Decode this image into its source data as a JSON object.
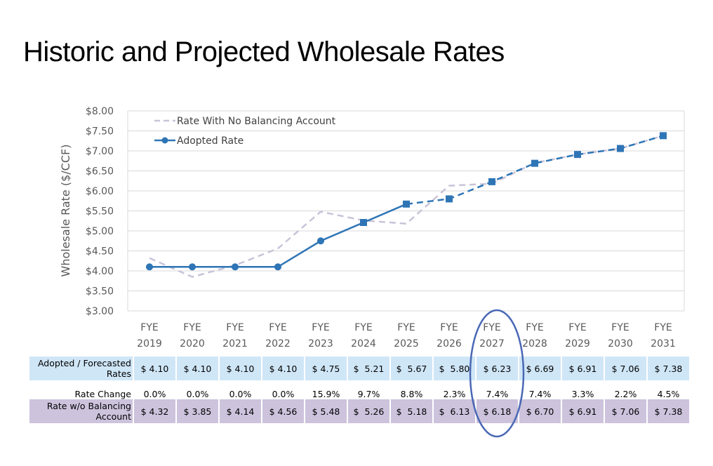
{
  "page_title": "Historic and Projected Wholesale Rates",
  "chart_data": {
    "type": "line",
    "title": "Historic and Projected Wholesale Rates",
    "xlabel": "",
    "ylabel": "Wholesale Rate ($/CCF)",
    "ylim": [
      3.0,
      8.0
    ],
    "yticks": [
      "$8.00",
      "$7.50",
      "$7.00",
      "$6.50",
      "$6.00",
      "$5.50",
      "$5.00",
      "$4.50",
      "$4.00",
      "$3.50",
      "$3.00"
    ],
    "ytick_values": [
      8.0,
      7.5,
      7.0,
      6.5,
      6.0,
      5.5,
      5.0,
      4.5,
      4.0,
      3.5,
      3.0
    ],
    "grid": true,
    "legend_position": "top-left",
    "categories": [
      {
        "line1": "FYE",
        "line2": "2019"
      },
      {
        "line1": "FYE",
        "line2": "2020"
      },
      {
        "line1": "FYE",
        "line2": "2021"
      },
      {
        "line1": "FYE",
        "line2": "2022"
      },
      {
        "line1": "FYE",
        "line2": "2023"
      },
      {
        "line1": "FYE",
        "line2": "2024"
      },
      {
        "line1": "FYE",
        "line2": "2025"
      },
      {
        "line1": "FYE",
        "line2": "2026"
      },
      {
        "line1": "FYE",
        "line2": "2027"
      },
      {
        "line1": "FYE",
        "line2": "2028"
      },
      {
        "line1": "FYE",
        "line2": "2029"
      },
      {
        "line1": "FYE",
        "line2": "2030"
      },
      {
        "line1": "FYE",
        "line2": "2031"
      }
    ],
    "series": [
      {
        "name": "Rate With No Balancing Account",
        "color": "#c9c3d9",
        "style": "dashed",
        "values": [
          4.32,
          3.85,
          4.14,
          4.56,
          5.48,
          5.26,
          5.18,
          6.13,
          6.18,
          6.7,
          6.91,
          7.06,
          7.38
        ]
      },
      {
        "name": "Adopted Rate",
        "color": "#2e75b6",
        "style": "solid through FYE 2025, dashed after",
        "markers": "circle through FYE 2023, square after",
        "values": [
          4.1,
          4.1,
          4.1,
          4.1,
          4.75,
          5.21,
          5.67,
          5.8,
          6.23,
          6.69,
          6.91,
          7.06,
          7.38
        ]
      }
    ],
    "highlight": "FYE 2027"
  },
  "table": {
    "rows": [
      {
        "header_line1": "Adopted / Forecasted",
        "header_line2": "Rates",
        "cells": [
          "$ 4.10",
          "$ 4.10",
          "$ 4.10",
          "$ 4.10",
          "$ 4.75",
          "$  5.21",
          "$  5.67",
          "$  5.80",
          "$ 6.23",
          "$ 6.69",
          "$ 6.91",
          "$ 7.06",
          "$ 7.38"
        ]
      },
      {
        "header_line1": "Rate Change",
        "header_line2": "",
        "cells": [
          "0.0%",
          "0.0%",
          "0.0%",
          "0.0%",
          "15.9%",
          "9.7%",
          "8.8%",
          "2.3%",
          "7.4%",
          "7.4%",
          "3.3%",
          "2.2%",
          "4.5%"
        ]
      },
      {
        "header_line1": "Rate w/o Balancing",
        "header_line2": "Account",
        "cells": [
          "$ 4.32",
          "$ 3.85",
          "$ 4.14",
          "$ 4.56",
          "$ 5.48",
          "$  5.26",
          "$  5.18",
          "$  6.13",
          "$ 6.18",
          "$ 6.70",
          "$ 6.91",
          "$ 7.06",
          "$ 7.38"
        ]
      }
    ]
  },
  "colors": {
    "adopted_line": "#2e75b6",
    "no_balancing_line": "#c9c3d9",
    "row_adopted_bg": "#cfe6f7",
    "row_nobal_bg": "#cdc3dd",
    "highlight_ellipse": "#4a69b5"
  }
}
